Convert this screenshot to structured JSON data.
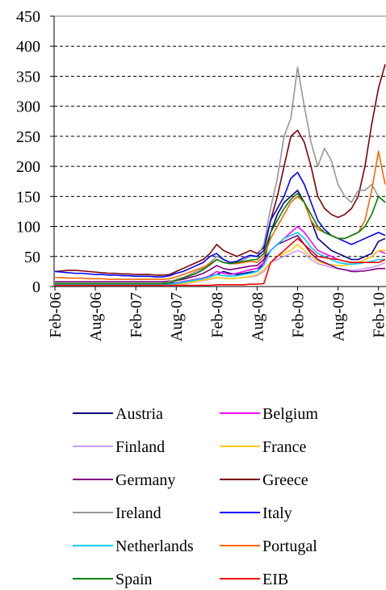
{
  "chart_data": {
    "type": "line",
    "categories": [
      "Feb-06",
      null,
      null,
      null,
      null,
      null,
      "Aug-06",
      null,
      null,
      null,
      null,
      null,
      "Feb-07",
      null,
      null,
      null,
      null,
      null,
      "Aug-07",
      null,
      null,
      null,
      null,
      null,
      "Feb-08",
      null,
      null,
      null,
      null,
      null,
      "Aug-08",
      null,
      null,
      null,
      null,
      null,
      "Feb-09",
      null,
      null,
      null,
      null,
      null,
      "Aug-09",
      null,
      null,
      null,
      null,
      null,
      "Feb-10",
      null
    ],
    "ylim": [
      0,
      450
    ],
    "yticks": [
      0,
      50,
      100,
      150,
      200,
      250,
      300,
      350,
      400,
      450
    ],
    "grid": true,
    "series": [
      {
        "name": "Austria",
        "color": "#000080",
        "values": [
          3,
          3,
          3,
          3,
          3,
          3,
          3,
          3,
          3,
          3,
          3,
          3,
          3,
          3,
          3,
          3,
          4,
          5,
          6,
          8,
          10,
          12,
          14,
          17,
          20,
          25,
          22,
          20,
          22,
          24,
          25,
          40,
          90,
          120,
          140,
          150,
          160,
          140,
          110,
          80,
          70,
          60,
          55,
          50,
          45,
          45,
          50,
          55,
          75,
          80
        ]
      },
      {
        "name": "Belgium",
        "color": "#FF00FF",
        "values": [
          2,
          2,
          2,
          2,
          2,
          2,
          2,
          2,
          2,
          2,
          2,
          2,
          2,
          2,
          2,
          2,
          3,
          4,
          6,
          8,
          10,
          12,
          14,
          18,
          25,
          22,
          20,
          22,
          25,
          28,
          30,
          40,
          60,
          70,
          80,
          90,
          100,
          90,
          75,
          60,
          55,
          50,
          45,
          42,
          40,
          40,
          45,
          50,
          60,
          55
        ]
      },
      {
        "name": "Finland",
        "color": "#CC99FF",
        "values": [
          1,
          1,
          1,
          1,
          1,
          1,
          1,
          1,
          1,
          1,
          1,
          1,
          1,
          1,
          1,
          1,
          2,
          3,
          4,
          5,
          6,
          8,
          10,
          12,
          15,
          14,
          13,
          14,
          15,
          16,
          18,
          25,
          40,
          45,
          50,
          55,
          60,
          55,
          45,
          38,
          35,
          32,
          30,
          28,
          27,
          28,
          30,
          32,
          35,
          40
        ]
      },
      {
        "name": "France",
        "color": "#FFCC00",
        "values": [
          2,
          2,
          2,
          2,
          2,
          2,
          2,
          2,
          2,
          2,
          2,
          2,
          2,
          2,
          2,
          2,
          2,
          3,
          4,
          5,
          7,
          9,
          11,
          13,
          15,
          14,
          13,
          14,
          15,
          17,
          20,
          28,
          40,
          50,
          55,
          60,
          70,
          60,
          50,
          42,
          38,
          36,
          35,
          35,
          38,
          40,
          45,
          50,
          60,
          60
        ]
      },
      {
        "name": "Germany",
        "color": "#800080",
        "values": [
          8,
          8,
          8,
          8,
          8,
          8,
          8,
          8,
          8,
          8,
          8,
          8,
          8,
          8,
          8,
          8,
          8,
          9,
          10,
          12,
          15,
          18,
          22,
          28,
          35,
          30,
          28,
          30,
          32,
          34,
          35,
          45,
          60,
          70,
          75,
          80,
          85,
          70,
          55,
          45,
          40,
          35,
          30,
          28,
          25,
          25,
          26,
          28,
          30,
          30
        ]
      },
      {
        "name": "Greece",
        "color": "#800000",
        "values": [
          25,
          26,
          27,
          27,
          26,
          25,
          24,
          23,
          22,
          22,
          21,
          21,
          20,
          20,
          20,
          19,
          19,
          20,
          25,
          30,
          35,
          40,
          45,
          55,
          70,
          60,
          55,
          50,
          55,
          60,
          55,
          65,
          110,
          150,
          200,
          250,
          260,
          240,
          200,
          150,
          130,
          120,
          115,
          120,
          130,
          150,
          200,
          270,
          330,
          370
        ]
      },
      {
        "name": "Ireland",
        "color": "#969696",
        "values": [
          3,
          3,
          3,
          3,
          3,
          3,
          3,
          3,
          3,
          3,
          3,
          3,
          3,
          3,
          3,
          4,
          5,
          8,
          12,
          15,
          20,
          25,
          30,
          40,
          50,
          45,
          40,
          40,
          45,
          50,
          50,
          70,
          130,
          180,
          250,
          280,
          365,
          300,
          240,
          200,
          230,
          210,
          170,
          150,
          140,
          160,
          160,
          170,
          150,
          140
        ]
      },
      {
        "name": "Italy",
        "color": "#0000FF",
        "values": [
          25,
          24,
          23,
          22,
          22,
          21,
          20,
          20,
          19,
          19,
          18,
          18,
          17,
          17,
          17,
          16,
          16,
          18,
          22,
          25,
          30,
          35,
          40,
          50,
          55,
          45,
          40,
          42,
          48,
          52,
          50,
          60,
          110,
          130,
          150,
          180,
          190,
          170,
          140,
          110,
          95,
          85,
          80,
          75,
          70,
          75,
          80,
          85,
          90,
          85
        ]
      },
      {
        "name": "Netherlands",
        "color": "#00CCFF",
        "values": [
          3,
          3,
          3,
          3,
          3,
          3,
          3,
          3,
          3,
          3,
          3,
          3,
          3,
          3,
          3,
          3,
          3,
          4,
          5,
          7,
          9,
          11,
          13,
          16,
          20,
          18,
          17,
          18,
          20,
          22,
          25,
          35,
          60,
          70,
          80,
          85,
          90,
          80,
          65,
          55,
          50,
          45,
          40,
          38,
          37,
          38,
          40,
          42,
          45,
          45
        ]
      },
      {
        "name": "Portugal",
        "color": "#FF6600",
        "values": [
          15,
          15,
          14,
          14,
          14,
          13,
          13,
          13,
          12,
          12,
          12,
          12,
          12,
          12,
          12,
          12,
          12,
          13,
          16,
          20,
          24,
          28,
          32,
          38,
          45,
          40,
          38,
          38,
          40,
          42,
          40,
          50,
          80,
          100,
          120,
          140,
          150,
          140,
          110,
          95,
          90,
          85,
          80,
          80,
          85,
          90,
          110,
          160,
          225,
          170
        ]
      },
      {
        "name": "Spain",
        "color": "#008000",
        "values": [
          5,
          5,
          5,
          5,
          5,
          5,
          5,
          5,
          5,
          5,
          5,
          5,
          5,
          5,
          5,
          5,
          5,
          6,
          10,
          14,
          18,
          22,
          28,
          36,
          45,
          40,
          38,
          40,
          42,
          44,
          45,
          55,
          90,
          110,
          130,
          145,
          155,
          140,
          120,
          100,
          90,
          85,
          80,
          80,
          85,
          90,
          100,
          120,
          150,
          140
        ]
      },
      {
        "name": "EIB",
        "color": "#FF0000",
        "values": [
          2,
          2,
          2,
          2,
          2,
          2,
          2,
          2,
          2,
          2,
          2,
          2,
          2,
          2,
          2,
          2,
          2,
          2,
          2,
          2,
          2,
          2,
          2,
          2,
          3,
          3,
          3,
          3,
          3,
          4,
          4,
          5,
          40,
          50,
          60,
          70,
          80,
          70,
          60,
          50,
          48,
          46,
          45,
          42,
          40,
          40,
          40,
          40,
          40,
          45
        ]
      }
    ]
  }
}
